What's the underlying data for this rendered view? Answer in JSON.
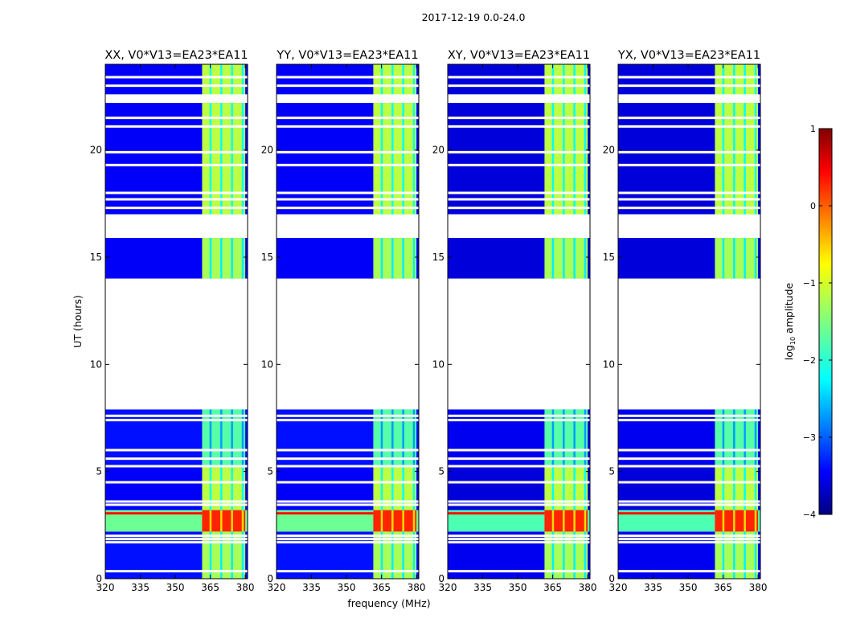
{
  "suptitle": "2017-12-19 0.0-24.0",
  "chart_data": {
    "type": "heatmap",
    "suptitle": "2017-12-19 0.0-24.0",
    "xlabel": "frequency (MHz)",
    "ylabel": "UT (hours)",
    "xlim": [
      320,
      381
    ],
    "ylim": [
      0,
      24
    ],
    "xticks": [
      "320",
      "335",
      "350",
      "365",
      "380"
    ],
    "yticks": [
      "0",
      "5",
      "10",
      "15",
      "20"
    ],
    "panels": [
      {
        "title": "XX, V0*V13=EA23*EA11",
        "polarization": "XX"
      },
      {
        "title": "YY, V0*V13=EA23*EA11",
        "polarization": "YY"
      },
      {
        "title": "XY, V0*V13=EA23*EA11",
        "polarization": "XY"
      },
      {
        "title": "YX, V0*V13=EA23*EA11",
        "polarization": "YX"
      }
    ],
    "colorbar": {
      "label": "log10 amplitude",
      "label_main": "log",
      "label_sub": "10",
      "label_tail": " amplitude",
      "range": [
        -4,
        1
      ],
      "ticks": [
        "1",
        "0",
        "−1",
        "−2",
        "−3",
        "−4"
      ],
      "colormap": "jet"
    },
    "data_segments_ut": [
      [
        0.0,
        7.9
      ],
      [
        14.0,
        15.9
      ],
      [
        17.0,
        22.2
      ],
      [
        22.6,
        24.0
      ]
    ],
    "flagged_ut": [
      0.35,
      1.7,
      1.85,
      2.0,
      3.45,
      3.6,
      4.5,
      5.25,
      5.6,
      6.0,
      7.4,
      7.6,
      17.3,
      17.7,
      18.0,
      19.3,
      19.9,
      21.1,
      21.5,
      23.0,
      23.4
    ],
    "bright_freq_band_mhz": [
      361.5,
      380
    ],
    "flare_ut": [
      2.2,
      3.2
    ],
    "regions": [
      {
        "ut": [
          0.0,
          2.2
        ],
        "band_level": -1.3,
        "background_level": -3.3
      },
      {
        "ut": [
          2.2,
          3.2
        ],
        "band_level": 0.2,
        "background_level": -1.6
      },
      {
        "ut": [
          3.2,
          5.3
        ],
        "band_level": -1.2,
        "background_level": -3.4
      },
      {
        "ut": [
          5.3,
          7.9
        ],
        "band_level": -1.7,
        "background_level": -3.3
      },
      {
        "ut": [
          14.0,
          15.9
        ],
        "band_level": -1.3,
        "background_level": -3.4
      },
      {
        "ut": [
          17.0,
          24.0
        ],
        "band_level": -1.2,
        "background_level": -3.4
      }
    ]
  }
}
